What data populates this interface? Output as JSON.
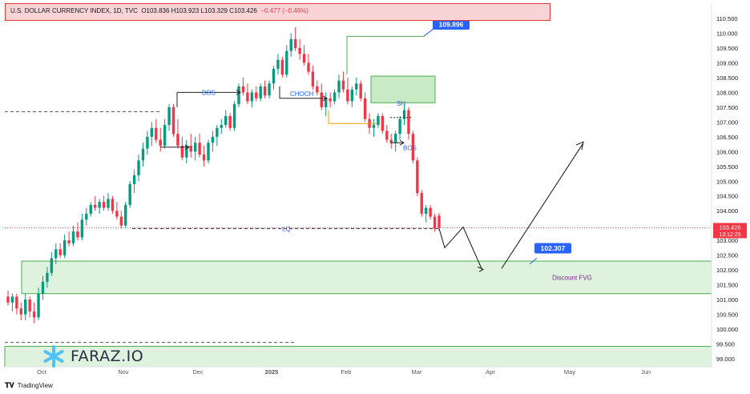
{
  "header": {
    "symbol": "U.S. DOLLAR CURRENCY INDEX, 1D, TVC",
    "ohlc": "O103.836  H103.923  L103.329  C103.426",
    "change": "−0.477 (−0.46%)"
  },
  "footer": {
    "brand": "TradingView",
    "brand_icon": "tradingview-logo-icon"
  },
  "watermark": {
    "text": "FARAZ.IO",
    "icon": "snowflake-logo-icon"
  },
  "colors": {
    "up": "#089981",
    "down": "#f23645",
    "zone_fill": "#dff2dd",
    "zone_stroke": "#4caf50",
    "label_blue": "#2962ff",
    "header_bg": "#f9d4d6",
    "header_border": "#e53935",
    "text_purple": "#7b1fa2"
  },
  "chart_data": {
    "type": "candlestick",
    "x_axis": {
      "tick_labels": [
        "Oct",
        "Nov",
        "Dec",
        "2025",
        "Feb",
        "Mar",
        "Apr",
        "May",
        "Jun"
      ]
    },
    "y_axis": {
      "range": [
        98.8,
        110.75
      ],
      "tick_labels": [
        "110.500",
        "110.000",
        "109.500",
        "109.000",
        "108.500",
        "108.000",
        "107.500",
        "107.000",
        "106.500",
        "106.000",
        "105.500",
        "105.000",
        "104.500",
        "104.000",
        "103.500",
        "103.000",
        "102.500",
        "102.000",
        "101.500",
        "101.000",
        "100.500",
        "100.000",
        "99.500",
        "99.000"
      ]
    },
    "last_price": {
      "value": "103.426",
      "countdown": "13:12:25",
      "level": 103.426
    },
    "candles": [
      {
        "o": 101.1,
        "h": 101.3,
        "l": 100.8,
        "c": 100.9
      },
      {
        "o": 100.9,
        "h": 101.2,
        "l": 100.6,
        "c": 101.1
      },
      {
        "o": 101.1,
        "h": 101.2,
        "l": 100.5,
        "c": 100.7
      },
      {
        "o": 100.7,
        "h": 100.9,
        "l": 100.3,
        "c": 100.5
      },
      {
        "o": 100.5,
        "h": 101.2,
        "l": 100.3,
        "c": 101.0
      },
      {
        "o": 101.0,
        "h": 101.1,
        "l": 100.4,
        "c": 100.6
      },
      {
        "o": 100.6,
        "h": 100.9,
        "l": 100.2,
        "c": 100.4
      },
      {
        "o": 100.4,
        "h": 101.4,
        "l": 100.3,
        "c": 101.2
      },
      {
        "o": 101.2,
        "h": 101.8,
        "l": 101.0,
        "c": 101.6
      },
      {
        "o": 101.6,
        "h": 102.1,
        "l": 101.4,
        "c": 101.9
      },
      {
        "o": 101.9,
        "h": 102.6,
        "l": 101.8,
        "c": 102.4
      },
      {
        "o": 102.4,
        "h": 102.9,
        "l": 102.2,
        "c": 102.7
      },
      {
        "o": 102.7,
        "h": 102.9,
        "l": 102.4,
        "c": 102.5
      },
      {
        "o": 102.5,
        "h": 103.2,
        "l": 102.4,
        "c": 103.0
      },
      {
        "o": 103.0,
        "h": 103.3,
        "l": 102.8,
        "c": 102.9
      },
      {
        "o": 102.9,
        "h": 103.5,
        "l": 102.8,
        "c": 103.3
      },
      {
        "o": 103.3,
        "h": 103.6,
        "l": 103.0,
        "c": 103.1
      },
      {
        "o": 103.1,
        "h": 103.9,
        "l": 103.0,
        "c": 103.7
      },
      {
        "o": 103.7,
        "h": 104.1,
        "l": 103.5,
        "c": 103.9
      },
      {
        "o": 103.9,
        "h": 104.3,
        "l": 103.8,
        "c": 104.2
      },
      {
        "o": 104.2,
        "h": 104.5,
        "l": 104.0,
        "c": 104.1
      },
      {
        "o": 104.1,
        "h": 104.4,
        "l": 103.9,
        "c": 104.3
      },
      {
        "o": 104.3,
        "h": 104.5,
        "l": 104.0,
        "c": 104.1
      },
      {
        "o": 104.1,
        "h": 104.6,
        "l": 104.0,
        "c": 104.4
      },
      {
        "o": 104.4,
        "h": 104.5,
        "l": 103.9,
        "c": 104.0
      },
      {
        "o": 104.0,
        "h": 104.3,
        "l": 103.7,
        "c": 103.8
      },
      {
        "o": 103.8,
        "h": 104.0,
        "l": 103.4,
        "c": 103.5
      },
      {
        "o": 103.5,
        "h": 104.3,
        "l": 103.4,
        "c": 104.2
      },
      {
        "o": 104.2,
        "h": 105.0,
        "l": 104.1,
        "c": 104.9
      },
      {
        "o": 104.9,
        "h": 105.4,
        "l": 104.6,
        "c": 105.2
      },
      {
        "o": 105.2,
        "h": 105.9,
        "l": 105.0,
        "c": 105.7
      },
      {
        "o": 105.7,
        "h": 106.3,
        "l": 105.5,
        "c": 106.1
      },
      {
        "o": 106.1,
        "h": 106.7,
        "l": 105.9,
        "c": 106.5
      },
      {
        "o": 106.5,
        "h": 107.0,
        "l": 106.2,
        "c": 106.8
      },
      {
        "o": 106.8,
        "h": 107.1,
        "l": 106.3,
        "c": 106.4
      },
      {
        "o": 106.4,
        "h": 106.8,
        "l": 106.0,
        "c": 106.2
      },
      {
        "o": 106.2,
        "h": 107.1,
        "l": 106.1,
        "c": 106.9
      },
      {
        "o": 106.9,
        "h": 107.6,
        "l": 106.7,
        "c": 107.5
      },
      {
        "o": 107.5,
        "h": 107.6,
        "l": 106.5,
        "c": 106.6
      },
      {
        "o": 106.6,
        "h": 107.1,
        "l": 106.1,
        "c": 106.2
      },
      {
        "o": 106.2,
        "h": 106.5,
        "l": 105.7,
        "c": 105.8
      },
      {
        "o": 105.8,
        "h": 106.4,
        "l": 105.6,
        "c": 106.2
      },
      {
        "o": 106.2,
        "h": 106.6,
        "l": 105.8,
        "c": 106.0
      },
      {
        "o": 106.0,
        "h": 106.5,
        "l": 105.7,
        "c": 106.3
      },
      {
        "o": 106.3,
        "h": 106.6,
        "l": 105.8,
        "c": 105.9
      },
      {
        "o": 105.9,
        "h": 106.2,
        "l": 105.5,
        "c": 105.7
      },
      {
        "o": 105.7,
        "h": 106.4,
        "l": 105.6,
        "c": 106.3
      },
      {
        "o": 106.3,
        "h": 106.7,
        "l": 106.0,
        "c": 106.5
      },
      {
        "o": 106.5,
        "h": 106.9,
        "l": 106.2,
        "c": 106.8
      },
      {
        "o": 106.8,
        "h": 107.1,
        "l": 106.6,
        "c": 106.9
      },
      {
        "o": 106.9,
        "h": 107.4,
        "l": 106.8,
        "c": 107.2
      },
      {
        "o": 107.2,
        "h": 107.3,
        "l": 106.7,
        "c": 106.8
      },
      {
        "o": 106.8,
        "h": 107.7,
        "l": 106.7,
        "c": 107.6
      },
      {
        "o": 107.6,
        "h": 108.3,
        "l": 107.5,
        "c": 108.2
      },
      {
        "o": 108.2,
        "h": 108.5,
        "l": 107.9,
        "c": 108.0
      },
      {
        "o": 108.0,
        "h": 108.3,
        "l": 107.6,
        "c": 107.7
      },
      {
        "o": 107.7,
        "h": 108.1,
        "l": 107.5,
        "c": 108.0
      },
      {
        "o": 108.0,
        "h": 108.2,
        "l": 107.7,
        "c": 107.8
      },
      {
        "o": 107.8,
        "h": 108.3,
        "l": 107.7,
        "c": 108.2
      },
      {
        "o": 108.2,
        "h": 108.4,
        "l": 107.8,
        "c": 107.9
      },
      {
        "o": 107.9,
        "h": 108.4,
        "l": 107.8,
        "c": 108.3
      },
      {
        "o": 108.3,
        "h": 108.9,
        "l": 108.1,
        "c": 108.8
      },
      {
        "o": 108.8,
        "h": 109.3,
        "l": 108.6,
        "c": 109.1
      },
      {
        "o": 109.1,
        "h": 109.2,
        "l": 108.5,
        "c": 108.6
      },
      {
        "o": 108.6,
        "h": 109.6,
        "l": 108.5,
        "c": 109.4
      },
      {
        "o": 109.4,
        "h": 110.0,
        "l": 109.2,
        "c": 109.8
      },
      {
        "o": 109.8,
        "h": 110.2,
        "l": 109.4,
        "c": 109.5
      },
      {
        "o": 109.5,
        "h": 109.8,
        "l": 109.1,
        "c": 109.3
      },
      {
        "o": 109.3,
        "h": 109.6,
        "l": 108.9,
        "c": 109.0
      },
      {
        "o": 109.0,
        "h": 109.3,
        "l": 108.6,
        "c": 108.7
      },
      {
        "o": 108.7,
        "h": 108.9,
        "l": 108.1,
        "c": 108.2
      },
      {
        "o": 108.2,
        "h": 108.4,
        "l": 107.9,
        "c": 108.0
      },
      {
        "o": 108.0,
        "h": 108.3,
        "l": 107.4,
        "c": 107.5
      },
      {
        "o": 107.5,
        "h": 108.0,
        "l": 107.2,
        "c": 107.8
      },
      {
        "o": 107.8,
        "h": 108.0,
        "l": 107.5,
        "c": 107.7
      },
      {
        "o": 107.7,
        "h": 108.1,
        "l": 107.6,
        "c": 108.0
      },
      {
        "o": 108.0,
        "h": 108.6,
        "l": 107.8,
        "c": 108.4
      },
      {
        "o": 108.4,
        "h": 108.7,
        "l": 108.0,
        "c": 108.1
      },
      {
        "o": 108.1,
        "h": 108.5,
        "l": 107.6,
        "c": 107.7
      },
      {
        "o": 107.7,
        "h": 108.2,
        "l": 107.5,
        "c": 108.1
      },
      {
        "o": 108.1,
        "h": 108.5,
        "l": 107.9,
        "c": 108.3
      },
      {
        "o": 108.3,
        "h": 108.4,
        "l": 107.7,
        "c": 107.8
      },
      {
        "o": 107.8,
        "h": 108.0,
        "l": 107.0,
        "c": 107.1
      },
      {
        "o": 107.1,
        "h": 107.3,
        "l": 106.6,
        "c": 106.8
      },
      {
        "o": 106.8,
        "h": 107.1,
        "l": 106.5,
        "c": 106.9
      },
      {
        "o": 106.9,
        "h": 107.3,
        "l": 106.8,
        "c": 107.2
      },
      {
        "o": 107.2,
        "h": 107.3,
        "l": 106.6,
        "c": 106.7
      },
      {
        "o": 106.7,
        "h": 106.9,
        "l": 106.3,
        "c": 106.4
      },
      {
        "o": 106.4,
        "h": 106.6,
        "l": 106.1,
        "c": 106.3
      },
      {
        "o": 106.3,
        "h": 106.7,
        "l": 106.0,
        "c": 106.6
      },
      {
        "o": 106.6,
        "h": 107.2,
        "l": 106.4,
        "c": 107.1
      },
      {
        "o": 107.1,
        "h": 107.6,
        "l": 106.9,
        "c": 107.4
      },
      {
        "o": 107.4,
        "h": 107.5,
        "l": 106.4,
        "c": 106.6
      },
      {
        "o": 106.6,
        "h": 106.7,
        "l": 105.6,
        "c": 105.7
      },
      {
        "o": 105.7,
        "h": 105.8,
        "l": 104.5,
        "c": 104.6
      },
      {
        "o": 104.6,
        "h": 104.7,
        "l": 103.8,
        "c": 103.9
      },
      {
        "o": 103.9,
        "h": 104.2,
        "l": 103.6,
        "c": 104.1
      },
      {
        "o": 104.1,
        "h": 104.2,
        "l": 103.7,
        "c": 103.8
      },
      {
        "o": 103.8,
        "h": 103.9,
        "l": 103.3,
        "c": 103.4
      },
      {
        "o": 103.836,
        "h": 103.923,
        "l": 103.329,
        "c": 103.426
      }
    ],
    "zones": [
      {
        "name": "Discount FVG",
        "top": 102.3,
        "bottom": 101.2,
        "label": "Discount FVG"
      },
      {
        "name": "lower-zone",
        "top": 99.42,
        "bottom": 98.8,
        "label": ""
      },
      {
        "name": "supply-box",
        "top": 108.55,
        "bottom": 107.65,
        "label": ""
      }
    ],
    "annotations": {
      "bos1": "BOS",
      "choch": "CHOCH",
      "sh": "SH",
      "bos2": "BOS",
      "lq": "LQ",
      "target_high": "109.896",
      "target_low": "102.307",
      "fvg": "Discount FVG"
    },
    "levels": {
      "lq": 103.4,
      "dashed_top": 107.35,
      "dashed_bottom": 99.55,
      "high": 109.896,
      "low_target": 102.307
    },
    "grid": false
  }
}
